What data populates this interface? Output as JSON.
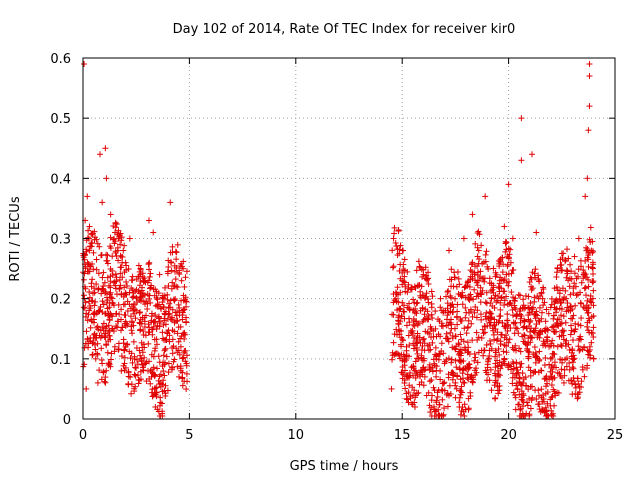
{
  "chart_data": {
    "type": "scatter",
    "title": "Day 102 of 2014, Rate Of TEC Index for receiver kir0",
    "xlabel": "GPS time / hours",
    "ylabel": "ROTI / TECUs",
    "xlim": [
      0,
      25
    ],
    "ylim": [
      0,
      0.6
    ],
    "x_ticks": [
      0,
      5,
      10,
      15,
      20,
      25
    ],
    "x_tick_labels": [
      "0",
      "5",
      "10",
      "15",
      "20",
      "25"
    ],
    "y_ticks": [
      0,
      0.1,
      0.2,
      0.3,
      0.4,
      0.5,
      0.6
    ],
    "y_tick_labels": [
      "0",
      "0.1",
      "0.2",
      "0.3",
      "0.4",
      "0.5",
      "0.6"
    ],
    "grid": true,
    "marker": "+",
    "color": "#e00000",
    "series": [
      {
        "name": "ROTI",
        "points": [
          [
            0.05,
            0.59
          ],
          [
            0.1,
            0.33
          ],
          [
            0.2,
            0.37
          ],
          [
            0.3,
            0.28
          ],
          [
            0.15,
            0.05
          ],
          [
            0.4,
            0.22
          ],
          [
            0.6,
            0.1
          ],
          [
            0.8,
            0.44
          ],
          [
            1.05,
            0.45
          ],
          [
            1.1,
            0.4
          ],
          [
            0.9,
            0.36
          ],
          [
            1.3,
            0.34
          ],
          [
            1.5,
            0.12
          ],
          [
            0.7,
            0.06
          ],
          [
            1.8,
            0.08
          ],
          [
            2.2,
            0.3
          ],
          [
            2.5,
            0.18
          ],
          [
            2.7,
            0.25
          ],
          [
            3.1,
            0.33
          ],
          [
            3.3,
            0.31
          ],
          [
            3.6,
            0.24
          ],
          [
            3.8,
            0.2
          ],
          [
            4.1,
            0.36
          ],
          [
            4.3,
            0.16
          ],
          [
            4.6,
            0.08
          ],
          [
            4.8,
            0.14
          ],
          [
            3.4,
            0.02
          ],
          [
            2.0,
            0.12
          ],
          [
            14.5,
            0.05
          ],
          [
            14.7,
            0.2
          ],
          [
            15.0,
            0.23
          ],
          [
            15.2,
            0.12
          ],
          [
            15.6,
            0.02
          ],
          [
            16.0,
            0.24
          ],
          [
            16.3,
            0.09
          ],
          [
            16.8,
            0.2
          ],
          [
            17.2,
            0.28
          ],
          [
            17.5,
            0.06
          ],
          [
            17.9,
            0.3
          ],
          [
            18.3,
            0.34
          ],
          [
            18.6,
            0.28
          ],
          [
            18.9,
            0.37
          ],
          [
            19.2,
            0.2
          ],
          [
            19.5,
            0.08
          ],
          [
            19.8,
            0.32
          ],
          [
            20.0,
            0.39
          ],
          [
            20.2,
            0.3
          ],
          [
            20.4,
            0.15
          ],
          [
            20.6,
            0.5
          ],
          [
            20.6,
            0.43
          ],
          [
            21.1,
            0.44
          ],
          [
            21.3,
            0.31
          ],
          [
            21.6,
            0.2
          ],
          [
            21.9,
            0.12
          ],
          [
            22.3,
            0.25
          ],
          [
            22.6,
            0.06
          ],
          [
            22.9,
            0.18
          ],
          [
            23.1,
            0.27
          ],
          [
            23.3,
            0.3
          ],
          [
            23.6,
            0.37
          ],
          [
            23.7,
            0.4
          ],
          [
            23.75,
            0.48
          ],
          [
            23.8,
            0.52
          ],
          [
            23.8,
            0.57
          ],
          [
            23.8,
            0.59
          ],
          [
            23.9,
            0.28
          ],
          [
            24.0,
            0.1
          ]
        ],
        "clusters": [
          {
            "x_range": [
              0.0,
              4.9
            ],
            "typical_y_range": [
              0.04,
              0.28
            ],
            "density": "very dense"
          },
          {
            "x_range": [
              14.5,
              24.0
            ],
            "typical_y_range": [
              0.01,
              0.26
            ],
            "density": "very dense"
          }
        ]
      }
    ]
  }
}
